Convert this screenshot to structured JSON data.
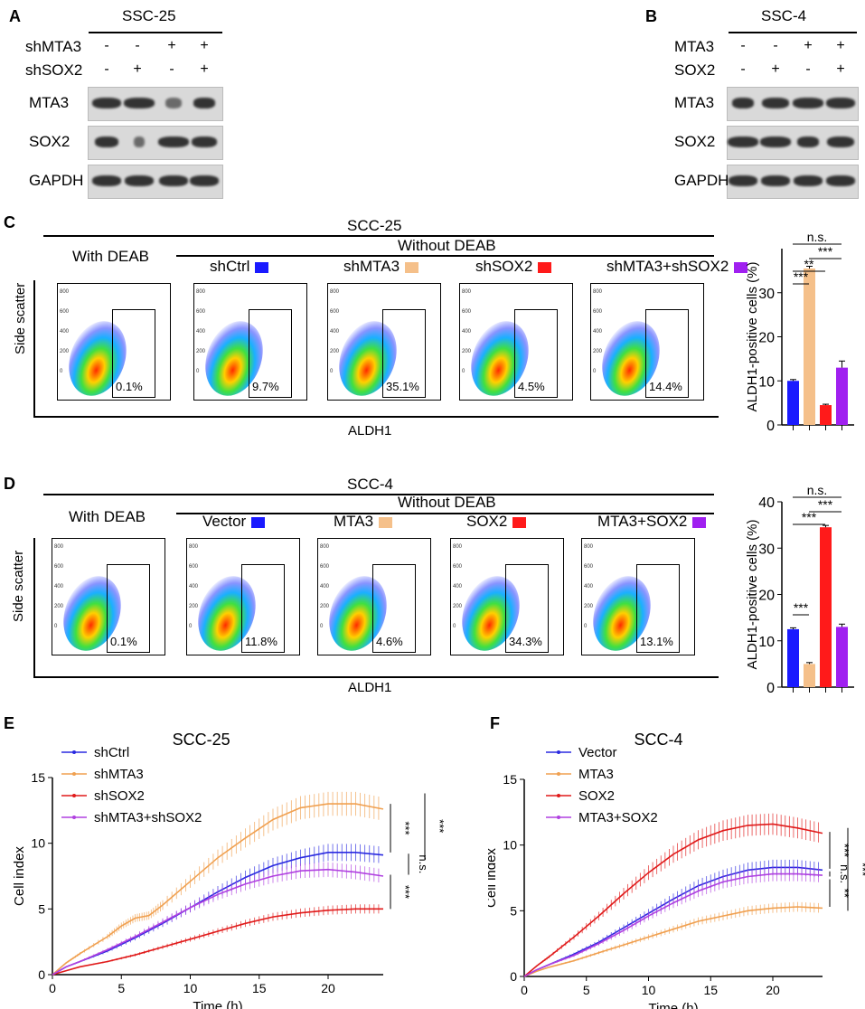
{
  "panelA": {
    "letter": "A",
    "cell_line": "SSC-25",
    "rows": [
      {
        "label": "shMTA3",
        "signs": [
          "-",
          "-",
          "+",
          "+"
        ]
      },
      {
        "label": "shSOX2",
        "signs": [
          "-",
          "+",
          "-",
          "+"
        ]
      }
    ],
    "blots": [
      "MTA3",
      "SOX2",
      "GAPDH"
    ]
  },
  "panelB": {
    "letter": "B",
    "cell_line": "SSC-4",
    "rows": [
      {
        "label": "MTA3",
        "signs": [
          "-",
          "-",
          "+",
          "+"
        ]
      },
      {
        "label": "SOX2",
        "signs": [
          "-",
          "+",
          "-",
          "+"
        ]
      }
    ],
    "blots": [
      "MTA3",
      "SOX2",
      "GAPDH"
    ]
  },
  "panelC": {
    "letter": "C",
    "title": "SCC-25",
    "with_deab": "With DEAB",
    "without_deab": "Without DEAB",
    "conditions": [
      {
        "label": "shCtrl",
        "color": "#1a1aff"
      },
      {
        "label": "shMTA3",
        "color": "#f5c08a"
      },
      {
        "label": "shSOX2",
        "color": "#ff1a1a"
      },
      {
        "label": "shMTA3+shSOX2",
        "color": "#a020f0"
      }
    ],
    "percents": [
      "0.1%",
      "9.7%",
      "35.1%",
      "4.5%",
      "14.4%"
    ],
    "xlabel": "ALDH1",
    "ylabel": "Side scatter",
    "bar_ylabel": "ALDH1-positive cells (%)",
    "sig": [
      "n.s.",
      "***",
      "**",
      "***"
    ]
  },
  "panelD": {
    "letter": "D",
    "title": "SCC-4",
    "with_deab": "With DEAB",
    "without_deab": "Without DEAB",
    "conditions": [
      {
        "label": "Vector",
        "color": "#1a1aff"
      },
      {
        "label": "MTA3",
        "color": "#f5c08a"
      },
      {
        "label": "SOX2",
        "color": "#ff1a1a"
      },
      {
        "label": "MTA3+SOX2",
        "color": "#a020f0"
      }
    ],
    "percents": [
      "0.1%",
      "11.8%",
      "4.6%",
      "34.3%",
      "13.1%"
    ],
    "xlabel": "ALDH1",
    "ylabel": "Side scatter",
    "bar_ylabel": "ALDH1-positive cells (%)",
    "sig": [
      "n.s.",
      "***",
      "***",
      "***"
    ]
  },
  "panelE": {
    "letter": "E",
    "sig": [
      "***",
      "***",
      "n.s.",
      "***"
    ]
  },
  "panelF": {
    "letter": "F",
    "sig": [
      "***",
      "n.s.",
      "**",
      "***"
    ]
  },
  "chart_data": [
    {
      "type": "bar",
      "id": "C-bar",
      "categories": [
        "shCtrl",
        "shMTA3",
        "shSOX2",
        "shMTA3+shSOX2"
      ],
      "values": [
        10,
        35.5,
        4.5,
        13
      ],
      "errors": [
        0.3,
        0.5,
        0.2,
        1.5
      ],
      "ylabel": "ALDH1-positive cells (%)",
      "ylim": [
        0,
        40
      ],
      "yticks": [
        0,
        10,
        20,
        30
      ]
    },
    {
      "type": "bar",
      "id": "D-bar",
      "categories": [
        "Vector",
        "MTA3",
        "SOX2",
        "MTA3+SOX2"
      ],
      "values": [
        12.5,
        5,
        34.5,
        13
      ],
      "errors": [
        0.3,
        0.3,
        0.4,
        0.6
      ],
      "ylabel": "ALDH1-positive cells (%)",
      "ylim": [
        0,
        40
      ],
      "yticks": [
        0,
        10,
        20,
        30,
        40
      ]
    },
    {
      "type": "line",
      "id": "E-line",
      "title": "SCC-25",
      "xlabel": "Time (h)",
      "ylabel": "Cell index",
      "xlim": [
        0,
        24
      ],
      "ylim": [
        0,
        15
      ],
      "xticks": [
        0,
        5,
        10,
        15,
        20
      ],
      "yticks": [
        0,
        5,
        10,
        15
      ],
      "series": [
        {
          "name": "shCtrl",
          "color": "#2a2ae0",
          "x": [
            0,
            1,
            2,
            4,
            6,
            8,
            10,
            12,
            14,
            16,
            18,
            20,
            22,
            24
          ],
          "y": [
            0,
            0.6,
            1.0,
            1.8,
            2.8,
            3.9,
            5.1,
            6.3,
            7.4,
            8.3,
            8.9,
            9.3,
            9.3,
            9.1
          ]
        },
        {
          "name": "shMTA3",
          "color": "#f0a050",
          "x": [
            0,
            1,
            2,
            4,
            5,
            6,
            7,
            8,
            10,
            12,
            14,
            16,
            18,
            20,
            22,
            24
          ],
          "y": [
            0,
            0.9,
            1.6,
            2.9,
            3.7,
            4.3,
            4.5,
            5.3,
            7.1,
            8.9,
            10.4,
            11.8,
            12.7,
            13.0,
            13.0,
            12.6
          ]
        },
        {
          "name": "shSOX2",
          "color": "#e01a1a",
          "x": [
            0,
            1,
            2,
            4,
            6,
            8,
            10,
            12,
            14,
            16,
            18,
            20,
            22,
            24
          ],
          "y": [
            0,
            0.3,
            0.6,
            1.0,
            1.5,
            2.1,
            2.7,
            3.3,
            3.9,
            4.4,
            4.7,
            4.9,
            5.0,
            5.0
          ]
        },
        {
          "name": "shMTA3+shSOX2",
          "color": "#b040e0",
          "x": [
            0,
            1,
            2,
            4,
            6,
            8,
            10,
            12,
            14,
            16,
            18,
            20,
            22,
            24
          ],
          "y": [
            0,
            0.6,
            1.0,
            1.9,
            2.9,
            4.0,
            5.1,
            6.1,
            6.9,
            7.5,
            7.9,
            8.0,
            7.8,
            7.5
          ]
        }
      ]
    },
    {
      "type": "line",
      "id": "F-line",
      "title": "SCC-4",
      "xlabel": "Time (h)",
      "ylabel": "Cell index",
      "xlim": [
        0,
        24
      ],
      "ylim": [
        0,
        15
      ],
      "xticks": [
        0,
        5,
        10,
        15,
        20
      ],
      "yticks": [
        0,
        5,
        10,
        15
      ],
      "series": [
        {
          "name": "Vector",
          "color": "#2a2ae0",
          "x": [
            0,
            1,
            2,
            4,
            6,
            8,
            10,
            12,
            14,
            16,
            18,
            20,
            22,
            24
          ],
          "y": [
            0,
            0.5,
            0.9,
            1.7,
            2.6,
            3.7,
            4.8,
            5.9,
            6.9,
            7.6,
            8.1,
            8.3,
            8.3,
            8.1
          ]
        },
        {
          "name": "MTA3",
          "color": "#f0a050",
          "x": [
            0,
            1,
            2,
            4,
            6,
            8,
            10,
            12,
            14,
            16,
            18,
            20,
            22,
            24
          ],
          "y": [
            0,
            0.4,
            0.7,
            1.2,
            1.8,
            2.4,
            3.0,
            3.6,
            4.2,
            4.6,
            5.0,
            5.2,
            5.3,
            5.2
          ]
        },
        {
          "name": "SOX2",
          "color": "#e01a1a",
          "x": [
            0,
            1,
            2,
            4,
            6,
            8,
            10,
            12,
            14,
            16,
            18,
            20,
            22,
            24
          ],
          "y": [
            0,
            0.8,
            1.5,
            3.0,
            4.6,
            6.3,
            7.9,
            9.3,
            10.4,
            11.1,
            11.5,
            11.6,
            11.3,
            10.9
          ]
        },
        {
          "name": "MTA3+SOX2",
          "color": "#b040e0",
          "x": [
            0,
            1,
            2,
            4,
            6,
            8,
            10,
            12,
            14,
            16,
            18,
            20,
            22,
            24
          ],
          "y": [
            0,
            0.5,
            0.9,
            1.6,
            2.5,
            3.5,
            4.6,
            5.6,
            6.5,
            7.2,
            7.6,
            7.8,
            7.8,
            7.7
          ]
        }
      ]
    }
  ]
}
